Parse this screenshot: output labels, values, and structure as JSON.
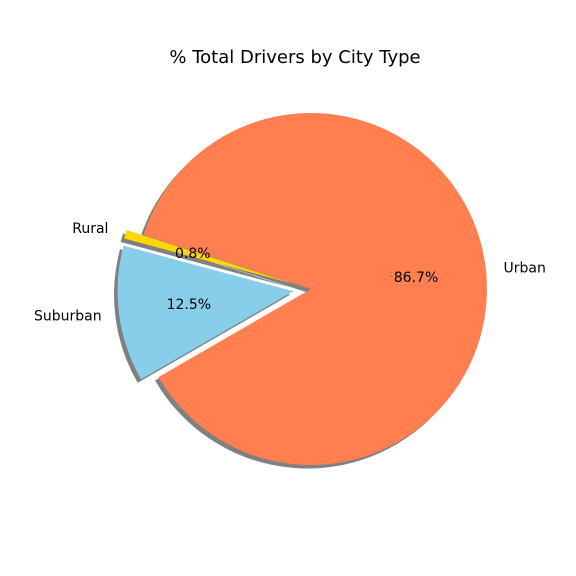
{
  "chart_data": {
    "type": "pie",
    "title": "% Total Drivers by City Type",
    "categories": [
      "Urban",
      "Rural",
      "Suburban"
    ],
    "values": [
      86.7,
      0.8,
      12.5
    ],
    "value_labels": [
      "86.7%",
      "0.8%",
      "12.5%"
    ],
    "colors": [
      "#FF7F50",
      "#FFD700",
      "#87CEEB"
    ],
    "explode": [
      0,
      0.1,
      0.1
    ],
    "start_angle_deg": 210,
    "shadow": true
  }
}
